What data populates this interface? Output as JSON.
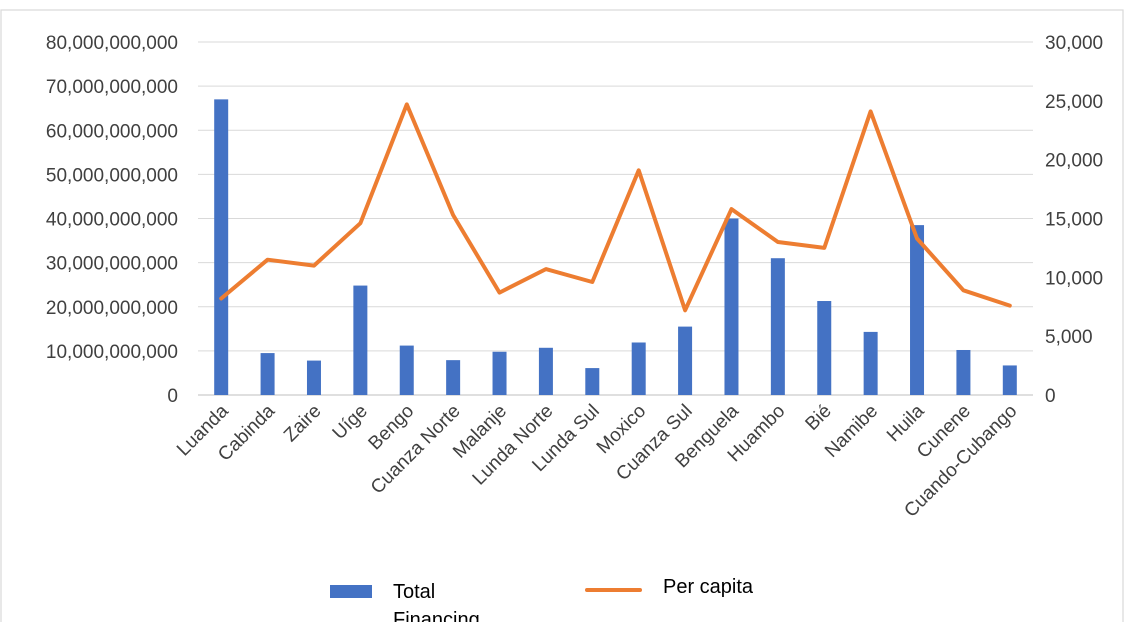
{
  "chart_data": {
    "type": "bar",
    "categories": [
      "Luanda",
      "Cabinda",
      "Zaire",
      "Uíge",
      "Bengo",
      "Cuanza Norte",
      "Malanje",
      "Lunda Norte",
      "Lunda Sul",
      "Moxico",
      "Cuanza Sul",
      "Benguela",
      "Huambo",
      "Bié",
      "Namibe",
      "Huila",
      "Cunene",
      "Cuando-Cubango"
    ],
    "series": [
      {
        "name": "Total Financing",
        "type": "bar",
        "axis": "left",
        "color": "#4472C4",
        "values": [
          67000000000,
          9500000000,
          7800000000,
          24800000000,
          11200000000,
          7900000000,
          9800000000,
          10700000000,
          6100000000,
          11900000000,
          15500000000,
          40000000000,
          31000000000,
          21300000000,
          14300000000,
          38500000000,
          10200000000,
          6700000000
        ]
      },
      {
        "name": "Per capita",
        "type": "line",
        "axis": "right",
        "color": "#ED7D31",
        "values": [
          8200,
          11500,
          11000,
          14600,
          24700,
          15300,
          8700,
          10700,
          9600,
          19100,
          7200,
          15800,
          13000,
          12500,
          24100,
          13300,
          8900,
          7600
        ]
      }
    ],
    "y_left": {
      "ylim": [
        0,
        80000000000
      ],
      "ticks": [
        0,
        10000000000,
        20000000000,
        30000000000,
        40000000000,
        50000000000,
        60000000000,
        70000000000,
        80000000000
      ],
      "tick_labels": [
        "0",
        "10,000,000,000",
        "20,000,000,000",
        "30,000,000,000",
        "40,000,000,000",
        "50,000,000,000",
        "60,000,000,000",
        "70,000,000,000",
        "80,000,000,000"
      ]
    },
    "y_right": {
      "ylim": [
        0,
        30000
      ],
      "ticks": [
        0,
        5000,
        10000,
        15000,
        20000,
        25000,
        30000
      ],
      "tick_labels": [
        "0",
        "5,000",
        "10,000",
        "15,000",
        "20,000",
        "25,000",
        "30,000"
      ]
    },
    "grid": true,
    "legend_position": "bottom",
    "legend": {
      "bar_label_line1": "Total",
      "bar_label_line2": "Financing",
      "line_label": "Per capita"
    }
  }
}
